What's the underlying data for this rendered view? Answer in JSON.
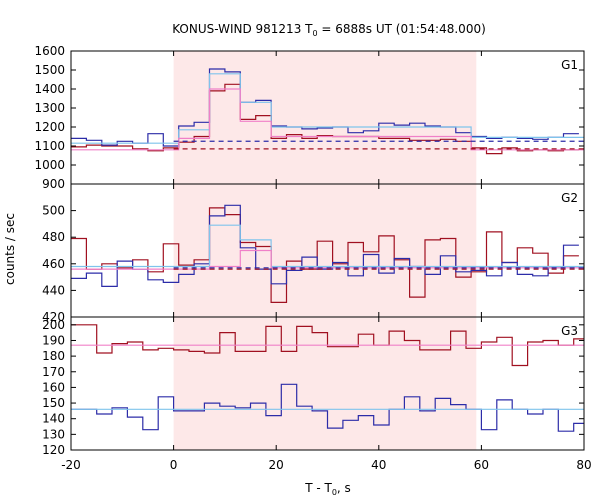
{
  "title": {
    "main": "KONUS-WIND 981213 T",
    "sub": "0",
    "rest": " = 6888s UT (01:54:48.000)"
  },
  "xlabel": {
    "main": "T - T",
    "sub": "0",
    "rest": ", s"
  },
  "ylabel": "counts / sec",
  "colors": {
    "red": "#a01020",
    "blue": "#2c2ca8",
    "lightblue": "#7fc4ec",
    "pink": "#f080c8",
    "shade": "#fde8e8"
  },
  "chart_data": {
    "type": "line",
    "xlim": [
      -20,
      80
    ],
    "xticks": [
      -20,
      0,
      20,
      40,
      60,
      80
    ],
    "shaded_interval": [
      0,
      59
    ],
    "panels": [
      {
        "label": "G1",
        "ylim": [
          900,
          1600
        ],
        "yticks": [
          900,
          1000,
          1100,
          1200,
          1300,
          1400,
          1500,
          1600
        ],
        "series": [
          {
            "color": "red",
            "edges": [
              -20,
              -17,
              -14,
              -11,
              -8,
              -5,
              -2,
              1,
              4,
              7,
              10,
              13,
              16,
              19,
              22,
              25,
              28,
              31,
              34,
              37,
              40,
              43,
              46,
              49,
              52,
              55,
              58,
              61,
              64,
              67,
              70,
              73,
              76,
              79
            ],
            "values": [
              1095,
              1105,
              1100,
              1100,
              1085,
              1075,
              1090,
              1120,
              1150,
              1390,
              1425,
              1240,
              1260,
              1140,
              1160,
              1140,
              1155,
              1150,
              1150,
              1150,
              1140,
              1140,
              1130,
              1130,
              1135,
              1125,
              1090,
              1060,
              1090,
              1075,
              1080,
              1075,
              1080
            ]
          },
          {
            "color": "blue",
            "edges": [
              -20,
              -17,
              -14,
              -11,
              -8,
              -5,
              -2,
              1,
              4,
              7,
              10,
              13,
              16,
              19,
              22,
              25,
              28,
              31,
              34,
              37,
              40,
              43,
              46,
              49,
              52,
              55,
              58,
              61,
              64,
              67,
              70,
              73,
              76,
              79
            ],
            "values": [
              1140,
              1130,
              1105,
              1125,
              1115,
              1165,
              1100,
              1205,
              1225,
              1505,
              1490,
              1330,
              1340,
              1205,
              1200,
              1190,
              1195,
              1200,
              1170,
              1180,
              1220,
              1210,
              1220,
              1205,
              1200,
              1170,
              1150,
              1140,
              1145,
              1140,
              1135,
              1145,
              1165
            ]
          },
          {
            "color": "lightblue",
            "edges": [
              -20,
              1,
              7,
              13,
              19,
              58,
              80
            ],
            "values": [
              1115,
              1185,
              1480,
              1330,
              1200,
              1145
            ]
          },
          {
            "color": "pink",
            "edges": [
              -20,
              1,
              7,
              13,
              19,
              58,
              80
            ],
            "values": [
              1080,
              1140,
              1400,
              1230,
              1150,
              1080
            ]
          },
          {
            "color": "blue",
            "dashed": true,
            "y": 1125,
            "from": 0,
            "to": 80
          },
          {
            "color": "red",
            "dashed": true,
            "y": 1085,
            "from": 0,
            "to": 80
          }
        ]
      },
      {
        "label": "G2",
        "ylim": [
          420,
          520
        ],
        "yticks": [
          420,
          440,
          460,
          480,
          500
        ],
        "series": [
          {
            "color": "red",
            "edges": [
              -20,
              -17,
              -14,
              -11,
              -8,
              -5,
              -2,
              1,
              4,
              7,
              10,
              13,
              16,
              19,
              22,
              25,
              28,
              31,
              34,
              37,
              40,
              43,
              46,
              49,
              52,
              55,
              58,
              61,
              64,
              67,
              70,
              73,
              76,
              79
            ],
            "values": [
              479,
              456,
              460,
              457,
              463,
              454,
              475,
              459,
              463,
              502,
              497,
              476,
              473,
              431,
              462,
              456,
              477,
              460,
              476,
              469,
              481,
              463,
              435,
              478,
              479,
              450,
              454,
              484,
              461,
              472,
              468,
              453,
              466
            ]
          },
          {
            "color": "blue",
            "edges": [
              -20,
              -17,
              -14,
              -11,
              -8,
              -5,
              -2,
              1,
              4,
              7,
              10,
              13,
              16,
              19,
              22,
              25,
              28,
              31,
              34,
              37,
              40,
              43,
              46,
              49,
              52,
              55,
              58,
              61,
              64,
              67,
              70,
              73,
              76,
              79
            ],
            "values": [
              449,
              453,
              443,
              462,
              456,
              448,
              446,
              452,
              460,
              496,
              504,
              472,
              456,
              445,
              455,
              465,
              456,
              461,
              451,
              467,
              453,
              464,
              458,
              452,
              466,
              454,
              455,
              451,
              461,
              452,
              451,
              457,
              474
            ]
          },
          {
            "color": "lightblue",
            "edges": [
              -20,
              7,
              13,
              19,
              80
            ],
            "values": [
              458,
              489,
              478,
              458
            ]
          },
          {
            "color": "pink",
            "edges": [
              -20,
              7,
              13,
              19,
              80
            ],
            "values": [
              456,
              458,
              470,
              457
            ]
          },
          {
            "color": "blue",
            "dashed": true,
            "y": 457,
            "from": 0,
            "to": 80
          },
          {
            "color": "red",
            "dashed": true,
            "y": 456,
            "from": 0,
            "to": 80
          }
        ]
      },
      {
        "label": "G3",
        "ylim": [
          120,
          205
        ],
        "yticks": [
          120,
          130,
          140,
          150,
          160,
          170,
          180,
          190,
          200
        ],
        "series": [
          {
            "color": "red",
            "edges": [
              -20,
              -15,
              -12,
              -9,
              -6,
              -3,
              0,
              3,
              6,
              9,
              12,
              15,
              18,
              21,
              24,
              27,
              30,
              33,
              36,
              39,
              42,
              45,
              48,
              51,
              54,
              57,
              60,
              63,
              66,
              69,
              72,
              75,
              78,
              80
            ],
            "values": [
              200,
              182,
              188,
              189,
              184,
              185,
              184,
              183,
              182,
              195,
              183,
              183,
              199,
              183,
              199,
              195,
              186,
              186,
              194,
              187,
              196,
              190,
              184,
              184,
              196,
              185,
              189,
              192,
              174,
              189,
              190,
              187,
              191
            ]
          },
          {
            "color": "blue",
            "edges": [
              -20,
              -15,
              -12,
              -9,
              -6,
              -3,
              0,
              3,
              6,
              9,
              12,
              15,
              18,
              21,
              24,
              27,
              30,
              33,
              36,
              39,
              42,
              45,
              48,
              51,
              54,
              57,
              60,
              63,
              66,
              69,
              72,
              75,
              78,
              80
            ],
            "values": [
              146,
              143,
              147,
              141,
              133,
              154,
              145,
              145,
              150,
              148,
              147,
              150,
              142,
              162,
              148,
              145,
              134,
              139,
              142,
              136,
              146,
              154,
              145,
              153,
              149,
              146,
              133,
              152,
              146,
              143,
              146,
              132,
              137
            ]
          },
          {
            "color": "pink",
            "edges": [
              -20,
              80
            ],
            "values": [
              187
            ]
          },
          {
            "color": "lightblue",
            "edges": [
              -20,
              80
            ],
            "values": [
              146
            ]
          }
        ]
      }
    ]
  }
}
